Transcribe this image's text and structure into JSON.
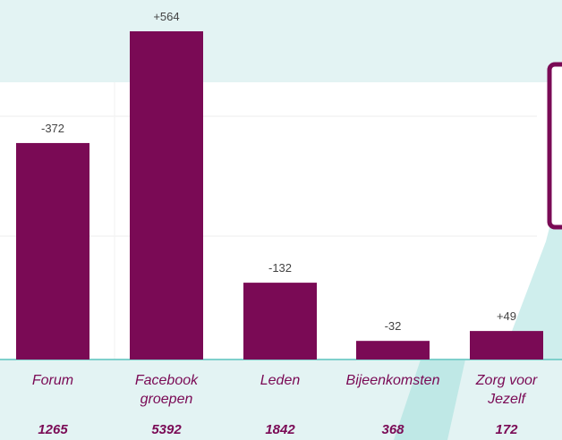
{
  "colors": {
    "bar": "#7a0a55",
    "background": "#e3f3f3",
    "panel": "#ffffff",
    "baseline": "#7fd0cc",
    "change_text": "#444444",
    "category_text": "#7a0a55",
    "total_text": "#7a0a55",
    "card_border": "#7a0a55"
  },
  "chart_data": {
    "type": "bar",
    "categories": [
      [
        "Forum"
      ],
      [
        "Facebook",
        "groepen"
      ],
      [
        "Leden"
      ],
      [
        "Bijeenkomsten"
      ],
      [
        "Zorg voor",
        "Jezelf"
      ]
    ],
    "values": [
      -372,
      564,
      -132,
      -32,
      49
    ],
    "value_labels": [
      "-372",
      "+564",
      "-132",
      "-32",
      "+49"
    ],
    "totals": [
      "1265",
      "5392",
      "1842",
      "368",
      "172"
    ],
    "grid": true,
    "legend": "none"
  }
}
